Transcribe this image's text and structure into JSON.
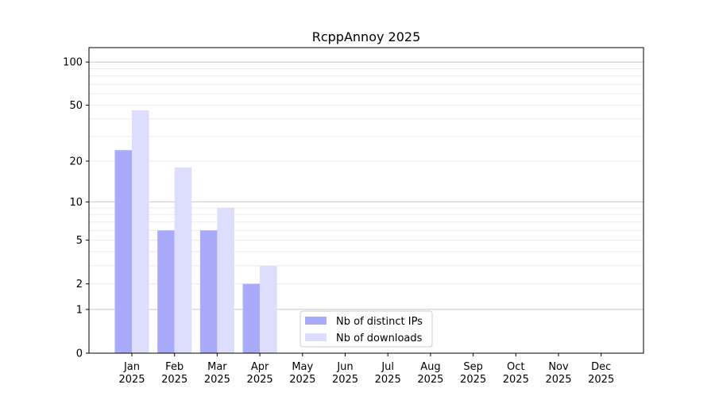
{
  "chart_data": {
    "type": "bar",
    "title": "RcppAnnoy 2025",
    "xlabel": "",
    "ylabel": "",
    "yscale": "log(1+y)",
    "ylim": [
      0,
      120
    ],
    "yticks": [
      0,
      1,
      2,
      5,
      10,
      20,
      50,
      100
    ],
    "grid": true,
    "legend_position": "bottom-center",
    "categories": [
      "Jan\n2025",
      "Feb\n2025",
      "Mar\n2025",
      "Apr\n2025",
      "May\n2025",
      "Jun\n2025",
      "Jul\n2025",
      "Aug\n2025",
      "Sep\n2025",
      "Oct\n2025",
      "Nov\n2025",
      "Dec\n2025"
    ],
    "series": [
      {
        "name": "Nb of distinct IPs",
        "color": "#aaaafa",
        "values": [
          24,
          6,
          6,
          2,
          null,
          null,
          null,
          null,
          null,
          null,
          null,
          null
        ]
      },
      {
        "name": "Nb of downloads",
        "color": "#ddddfd",
        "values": [
          46,
          18,
          9,
          3,
          null,
          null,
          null,
          null,
          null,
          null,
          null,
          null
        ]
      }
    ]
  }
}
